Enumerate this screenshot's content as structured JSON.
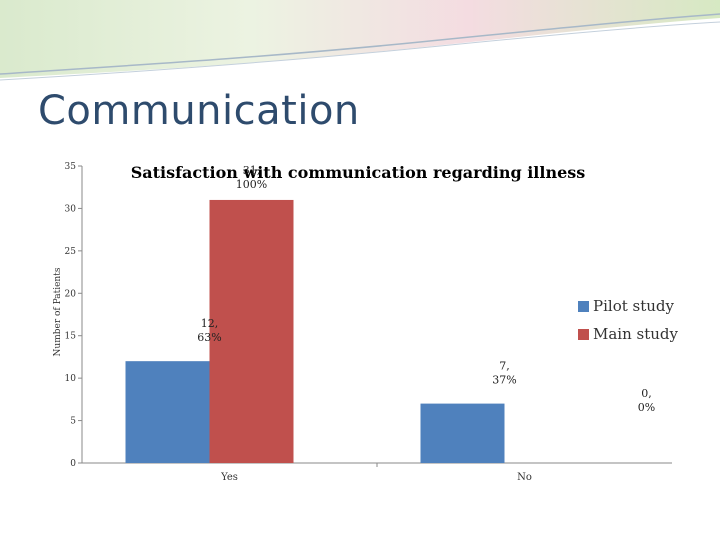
{
  "slide": {
    "title": "Communication"
  },
  "chart_data": {
    "type": "bar",
    "title": "Satisfaction with communication regarding illness",
    "xlabel": "",
    "ylabel": "Number of Patients",
    "ylim": [
      0,
      35
    ],
    "yticks": [
      0,
      5,
      10,
      15,
      20,
      25,
      30,
      35
    ],
    "grid": false,
    "legend_position": "right",
    "categories": [
      "Yes",
      "No"
    ],
    "series": [
      {
        "name": "Pilot study",
        "color": "#4f81bd",
        "values": [
          12,
          7
        ],
        "data_labels": [
          [
            "12,",
            "63%"
          ],
          [
            "7,",
            "37%"
          ]
        ]
      },
      {
        "name": "Main study",
        "color": "#c0504d",
        "values": [
          31,
          0
        ],
        "data_labels": [
          [
            "31,",
            "100%"
          ],
          [
            "0,",
            "0%"
          ]
        ]
      }
    ]
  }
}
